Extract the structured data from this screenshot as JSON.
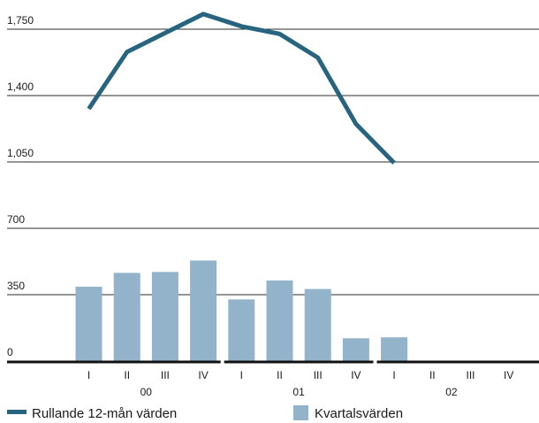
{
  "chart_data": {
    "type": "bar+line",
    "y_ticks": [
      "0",
      "350",
      "700",
      "1,050",
      "1,400",
      "1,750"
    ],
    "y_tick_values": [
      0,
      350,
      700,
      1050,
      1400,
      1750
    ],
    "ylim": [
      0,
      1850
    ],
    "grid": true,
    "years": [
      "00",
      "01",
      "02"
    ],
    "quarters": [
      "I",
      "II",
      "III",
      "IV"
    ],
    "categories": [
      "00 I",
      "00 II",
      "00 III",
      "00 IV",
      "01 I",
      "01 II",
      "01 III",
      "01 IV",
      "02 I",
      "02 II",
      "02 III",
      "02 IV"
    ],
    "series": [
      {
        "name": "Kvartalsvärden",
        "type": "bar",
        "color": "#92b3c9",
        "values": [
          392,
          465,
          470,
          530,
          325,
          425,
          380,
          120,
          125,
          null,
          null,
          null
        ]
      },
      {
        "name": "Rullande 12-mån värden",
        "type": "line",
        "color": "#27647f",
        "values": [
          1330,
          1630,
          1730,
          1830,
          1765,
          1725,
          1600,
          1250,
          1045,
          null,
          null,
          null
        ]
      }
    ],
    "legend_position": "bottom"
  }
}
